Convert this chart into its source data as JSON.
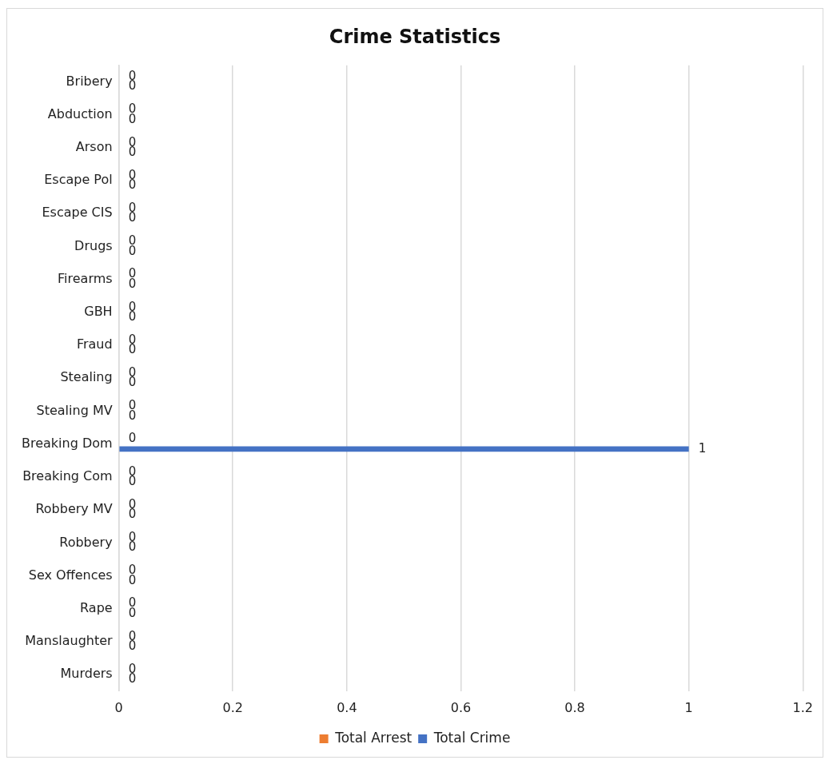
{
  "chart_data": {
    "type": "bar",
    "orientation": "horizontal",
    "title": "Crime Statistics",
    "categories": [
      "Bribery",
      "Abduction",
      "Arson",
      "Escape Pol",
      "Escape CIS",
      "Drugs",
      "Firearms",
      "GBH",
      "Fraud",
      "Stealing",
      "Stealing MV",
      "Breaking Dom",
      "Breaking Com",
      "Robbery MV",
      "Robbery",
      "Sex Offences",
      "Rape",
      "Manslaughter",
      "Murders"
    ],
    "series": [
      {
        "name": "Total Arrest",
        "color": "#ed7d31",
        "values": [
          0,
          0,
          0,
          0,
          0,
          0,
          0,
          0,
          0,
          0,
          0,
          0,
          0,
          0,
          0,
          0,
          0,
          0,
          0
        ]
      },
      {
        "name": "Total Crime",
        "color": "#4472c4",
        "values": [
          0,
          0,
          0,
          0,
          0,
          0,
          0,
          0,
          0,
          0,
          0,
          1,
          0,
          0,
          0,
          0,
          0,
          0,
          0
        ]
      }
    ],
    "xlim": [
      0,
      1.2
    ],
    "xticks": [
      0,
      0.2,
      0.4,
      0.6,
      0.8,
      1,
      1.2
    ],
    "grid": "x",
    "legend": "bottom",
    "data_labels": true
  }
}
